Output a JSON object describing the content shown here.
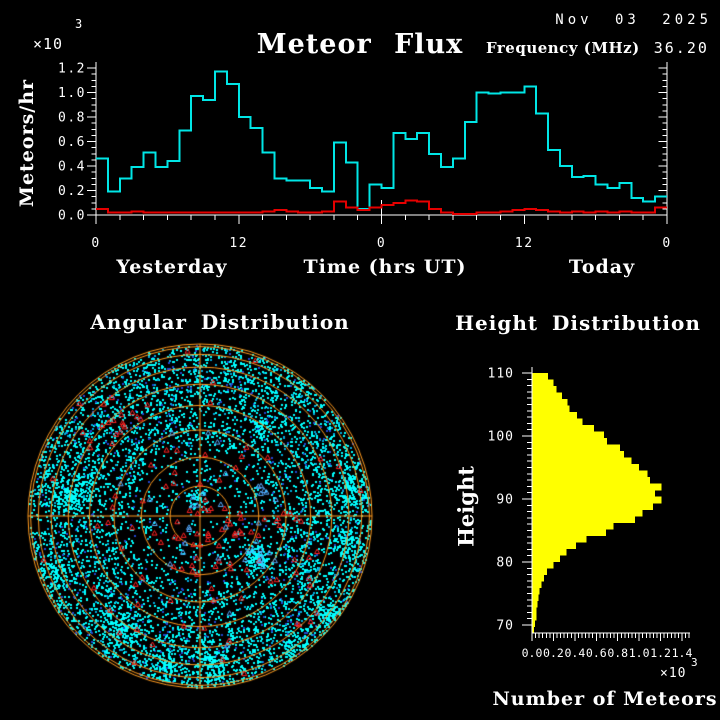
{
  "header": {
    "title": "Meteor Flux",
    "date": "Nov 03 2025",
    "frequency_label": "Frequency (MHz)",
    "frequency_value": "36.20"
  },
  "chart_data": [
    {
      "id": "flux",
      "type": "line",
      "title": "Meteor Flux",
      "ylabel": "Meteors/hr",
      "xlabel": "Time (hrs UT)",
      "x_section_labels": [
        "Yesterday",
        "Today"
      ],
      "y_scale_base": "×10",
      "y_scale_exp": "3",
      "ylim": [
        0,
        1.2
      ],
      "xlim_hours": [
        0,
        48
      ],
      "y_tick_labels": [
        "0.0",
        "0.2",
        "0.4",
        "0.6",
        "0.8",
        "1.0",
        "1.2"
      ],
      "x_tick_labels": [
        "0",
        "12",
        "0",
        "12",
        "0"
      ],
      "x_major_every_hours": 12,
      "x_minor_every_hours": 2,
      "grid": false,
      "series": [
        {
          "name": "flux-main",
          "color": "#00e6e6",
          "values": [
            0.46,
            0.19,
            0.3,
            0.39,
            0.51,
            0.39,
            0.44,
            0.69,
            0.97,
            0.94,
            1.17,
            1.07,
            0.8,
            0.71,
            0.51,
            0.3,
            0.28,
            0.28,
            0.22,
            0.19,
            0.59,
            0.43,
            0.05,
            0.25,
            0.22,
            0.67,
            0.62,
            0.67,
            0.5,
            0.39,
            0.46,
            0.76,
            1.0,
            0.99,
            1.0,
            1.0,
            1.05,
            0.83,
            0.53,
            0.4,
            0.31,
            0.32,
            0.25,
            0.22,
            0.26,
            0.14,
            0.11,
            0.15
          ]
        },
        {
          "name": "flux-secondary",
          "color": "#e60000",
          "values": [
            0.05,
            0.02,
            0.02,
            0.03,
            0.02,
            0.02,
            0.02,
            0.02,
            0.02,
            0.02,
            0.02,
            0.02,
            0.02,
            0.02,
            0.03,
            0.04,
            0.03,
            0.02,
            0.02,
            0.03,
            0.11,
            0.06,
            0.04,
            0.06,
            0.08,
            0.1,
            0.12,
            0.11,
            0.05,
            0.02,
            0.01,
            0.01,
            0.02,
            0.02,
            0.03,
            0.04,
            0.05,
            0.04,
            0.03,
            0.02,
            0.03,
            0.02,
            0.03,
            0.02,
            0.03,
            0.02,
            0.02,
            0.06
          ]
        }
      ]
    },
    {
      "id": "angular",
      "type": "scatter",
      "title": "Angular Distribution",
      "ring_color": "#ff9a1e",
      "ring_elevation_step_deg": 10,
      "rings_cos_fractions": [
        1,
        0.985,
        0.94,
        0.866,
        0.766,
        0.643,
        0.5,
        0.342,
        0.174
      ],
      "colors": {
        "points": "#00ffff",
        "points_mid": "#00aadd",
        "points_dark": "#2244cc",
        "red_markers": "#ff2222",
        "blue_markers": "#55aaff"
      },
      "counts": {
        "points": 6200,
        "red_markers": 130,
        "blue_markers": 40
      },
      "seed": 20251103,
      "clusters": [
        [
          -130,
          -22,
          11,
          160
        ],
        [
          152,
          -28,
          12,
          170
        ],
        [
          128,
          98,
          10,
          130
        ],
        [
          8,
          148,
          12,
          150
        ],
        [
          -78,
          112,
          10,
          120
        ],
        [
          58,
          40,
          7,
          110
        ],
        [
          148,
          28,
          8,
          90
        ],
        [
          -148,
          58,
          8,
          80
        ],
        [
          -3,
          -18,
          5,
          45
        ],
        [
          62,
          -88,
          7,
          55
        ],
        [
          -35,
          152,
          9,
          90
        ],
        [
          95,
          132,
          9,
          90
        ]
      ]
    },
    {
      "id": "height",
      "type": "bar",
      "title": "Height Distribution",
      "ylabel": "Height",
      "xlabel": "Number of Meteors",
      "x_scale_base": "×10",
      "x_scale_exp": "3",
      "bar_color": "#ffff00",
      "xlim": [
        0,
        1.4
      ],
      "height_range": [
        110,
        70
      ],
      "y_tick_labels": [
        "110",
        "100",
        "90",
        "80",
        "70"
      ],
      "x_tick_labels": [
        "0.0",
        "0.2",
        "0.4",
        "0.6",
        "0.8",
        "1.0",
        "1.2",
        "1.4"
      ],
      "values_top_to_bottom": [
        0.15,
        0.2,
        0.23,
        0.28,
        0.33,
        0.35,
        0.42,
        0.47,
        0.58,
        0.67,
        0.7,
        0.82,
        0.86,
        0.93,
        1.0,
        1.08,
        1.1,
        1.21,
        1.15,
        1.21,
        1.13,
        1.03,
        0.96,
        0.76,
        0.69,
        0.51,
        0.41,
        0.32,
        0.26,
        0.2,
        0.14,
        0.11,
        0.09,
        0.07,
        0.06,
        0.05,
        0.04,
        0.04,
        0.03,
        0.02
      ]
    }
  ]
}
